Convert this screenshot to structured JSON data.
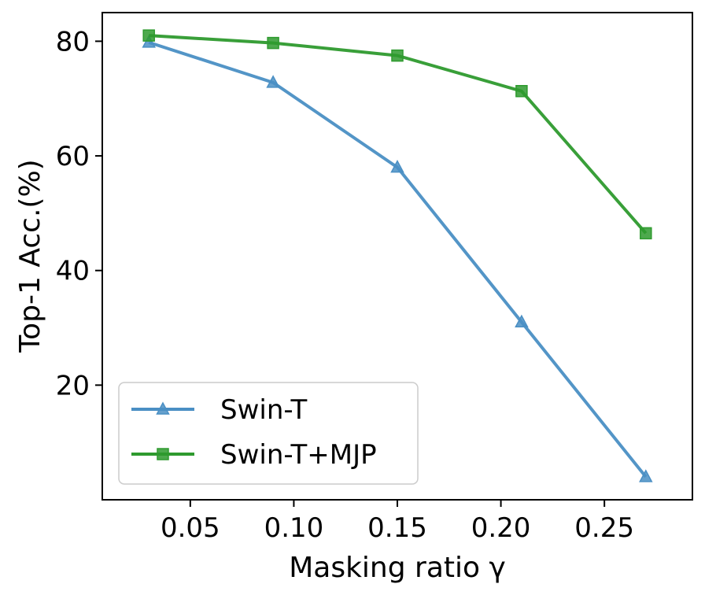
{
  "chart_data": {
    "type": "line",
    "title": "",
    "xlabel": "Masking ratio γ",
    "ylabel": "Top-1 Acc.(%)",
    "x": [
      0.03,
      0.09,
      0.15,
      0.21,
      0.27
    ],
    "xlim": [
      0.0075,
      0.2925
    ],
    "ylim": [
      0,
      85
    ],
    "xticks": [
      0.05,
      0.1,
      0.15,
      0.2,
      0.25
    ],
    "xtick_labels": [
      "0.05",
      "0.10",
      "0.15",
      "0.20",
      "0.25"
    ],
    "yticks": [
      20,
      40,
      60,
      80
    ],
    "ytick_labels": [
      "20",
      "40",
      "60",
      "80"
    ],
    "grid": false,
    "legend_position": "lower-left",
    "series": [
      {
        "name": "Swin-T",
        "values": [
          79.8,
          72.8,
          58.0,
          31.0,
          4.0
        ],
        "color": "#4a8fc4",
        "marker": "triangle"
      },
      {
        "name": "Swin-T+MJP",
        "values": [
          81.0,
          79.7,
          77.5,
          71.3,
          46.5
        ],
        "color": "#2e9a2e",
        "marker": "square"
      }
    ]
  }
}
